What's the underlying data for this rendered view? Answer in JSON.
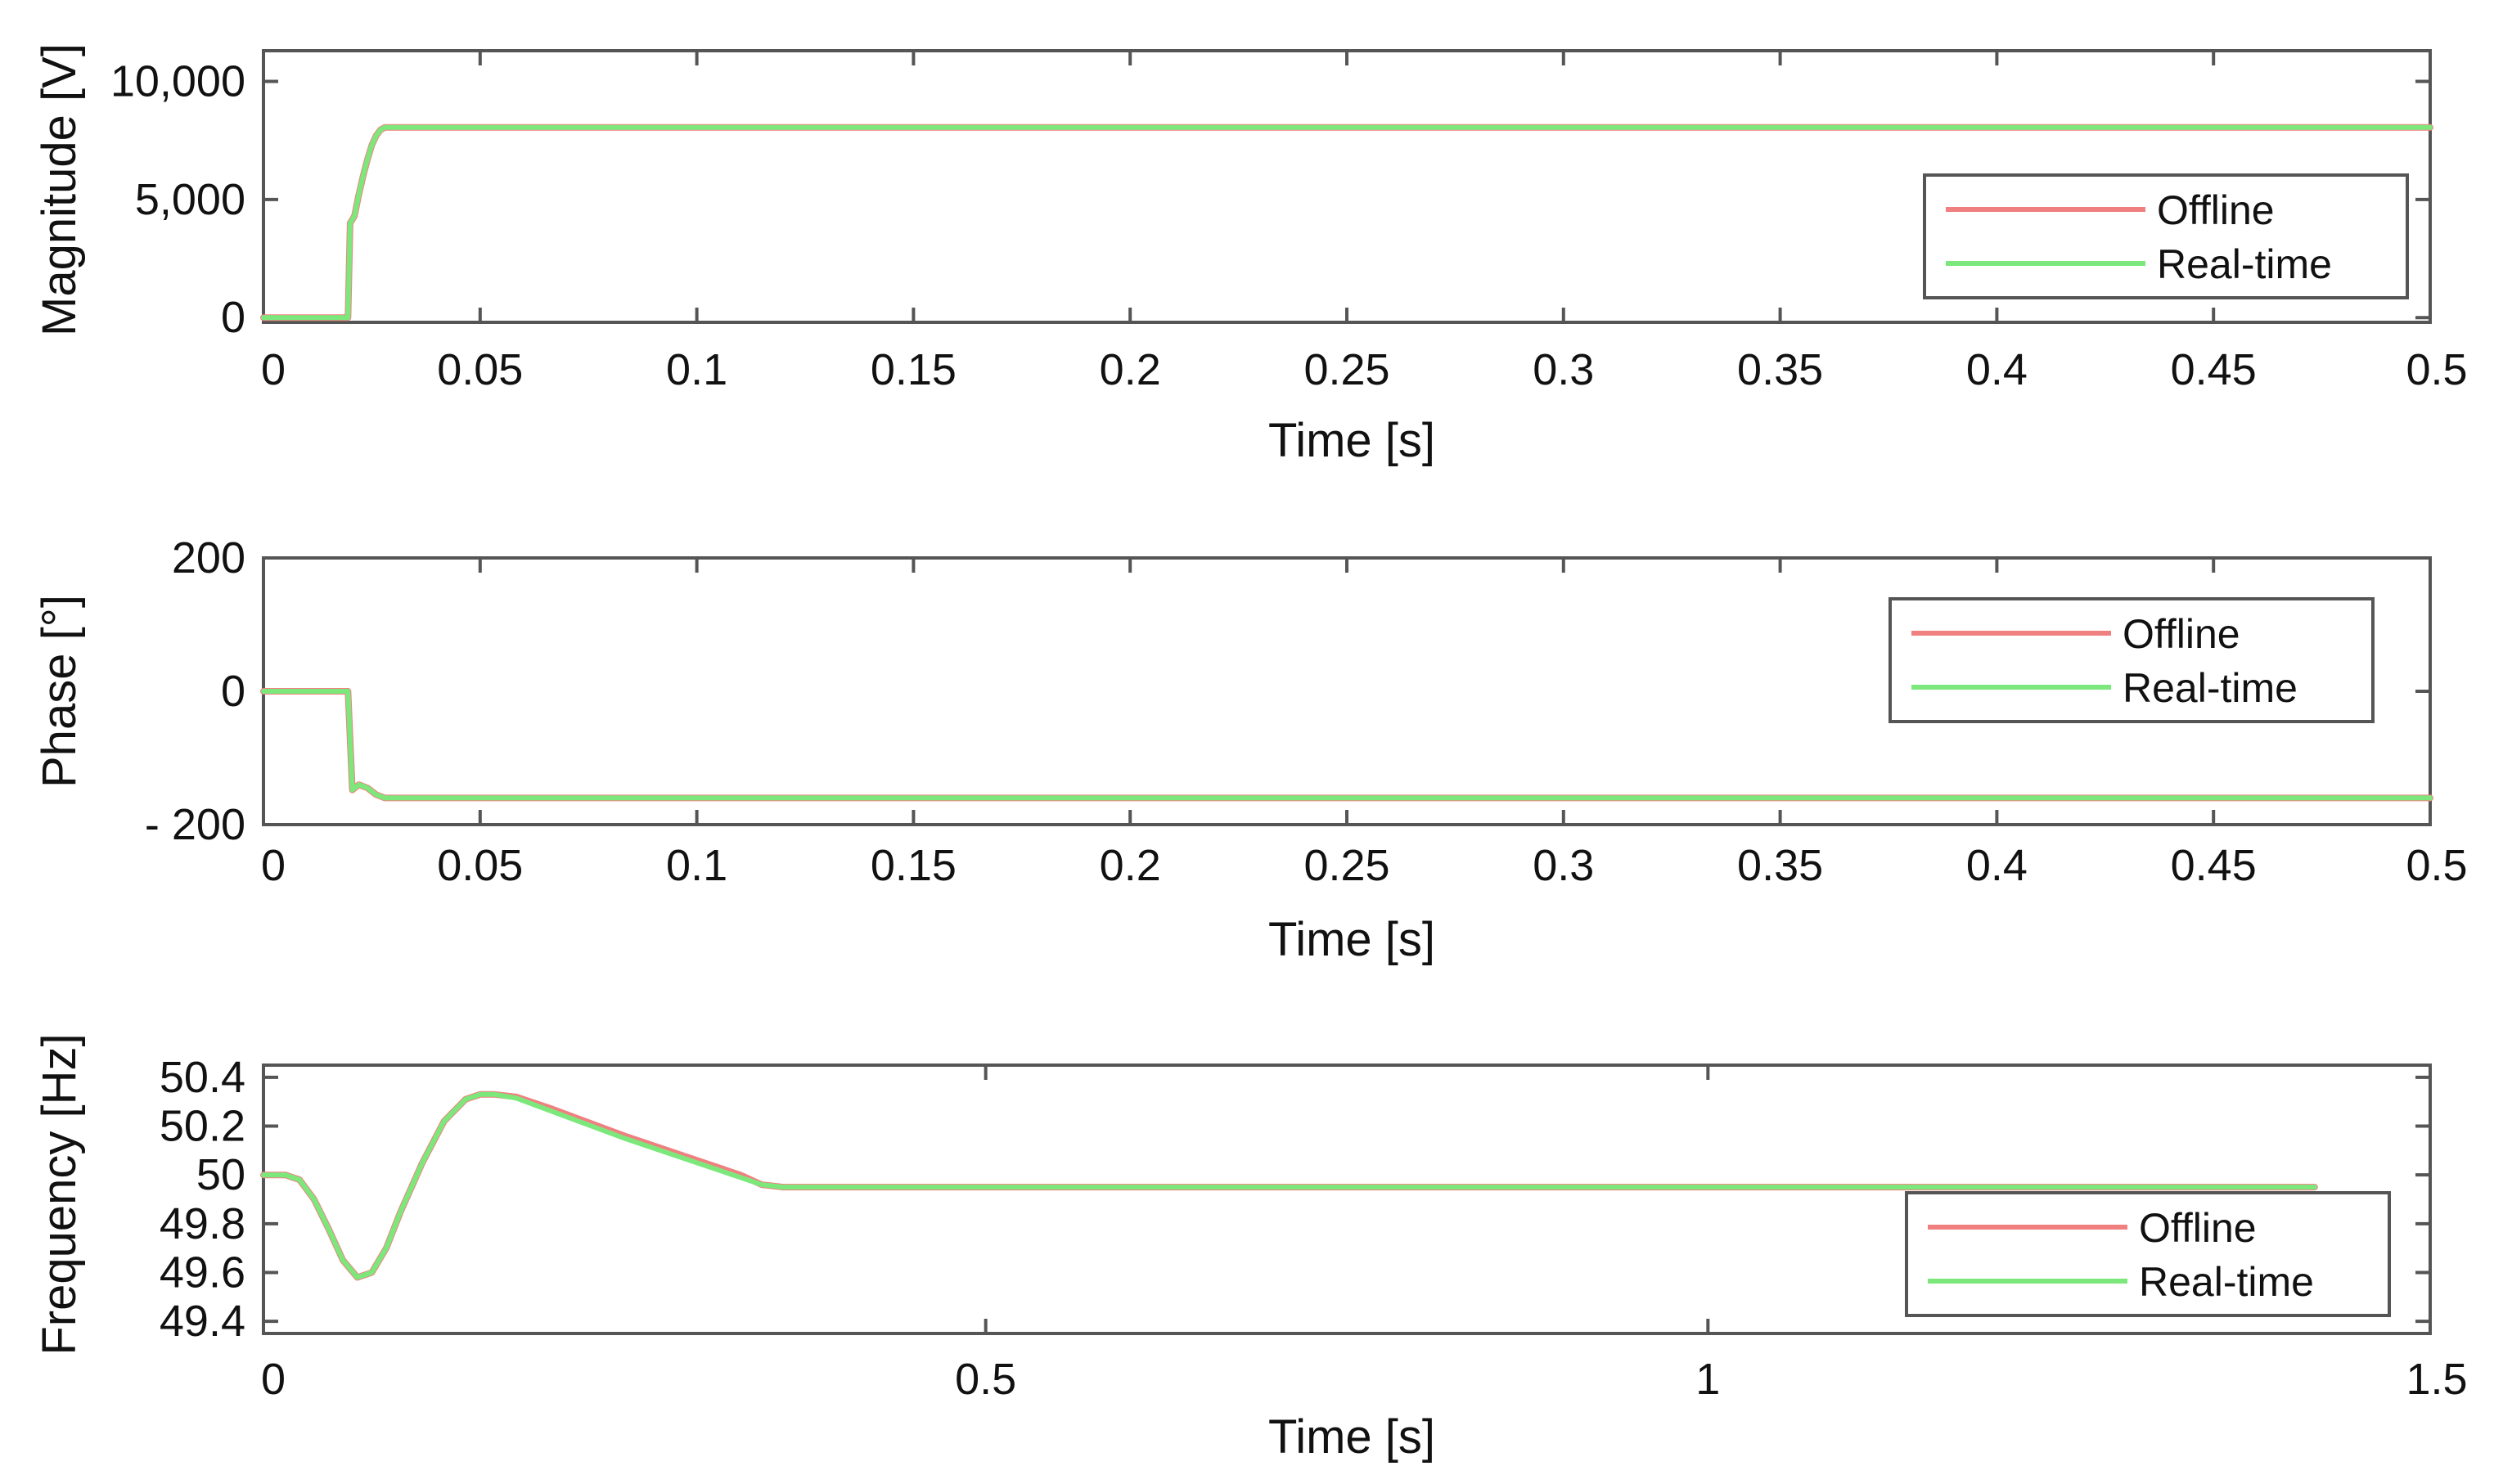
{
  "chart_data": [
    {
      "type": "line",
      "xlabel": "Time [s]",
      "ylabel": "Magnitude [V]",
      "xlim": [
        0,
        0.5
      ],
      "ylim": [
        -200,
        11300
      ],
      "xticks": [
        0,
        0.05,
        0.1,
        0.15,
        0.2,
        0.25,
        0.3,
        0.35,
        0.4,
        0.45,
        0.5
      ],
      "xtick_labels": [
        "0",
        "0.05",
        "0.1",
        "0.15",
        "0.2",
        "0.25",
        "0.3",
        "0.35",
        "0.4",
        "0.45",
        "0.5"
      ],
      "yticks": [
        0,
        5000,
        10000
      ],
      "ytick_labels": [
        "0",
        "5,000",
        "10,000"
      ],
      "grid": false,
      "legend_position": "right",
      "series": [
        {
          "name": "Offline",
          "color": "#f08080",
          "x": [
            0,
            0.0195,
            0.02,
            0.021,
            0.022,
            0.023,
            0.024,
            0.025,
            0.026,
            0.027,
            0.028,
            0.5
          ],
          "y": [
            0,
            0,
            4000,
            4300,
            5200,
            6000,
            6700,
            7300,
            7700,
            7950,
            8050,
            8050
          ]
        },
        {
          "name": "Real-time",
          "color": "#7ce87c",
          "x": [
            0,
            0.0195,
            0.02,
            0.021,
            0.022,
            0.023,
            0.024,
            0.025,
            0.026,
            0.027,
            0.028,
            0.5
          ],
          "y": [
            0,
            0,
            4000,
            4300,
            5200,
            6000,
            6700,
            7300,
            7700,
            7950,
            8050,
            8050
          ]
        }
      ]
    },
    {
      "type": "line",
      "xlabel": "Time [s]",
      "ylabel": "Phase [°]",
      "xlim": [
        0,
        0.5
      ],
      "ylim": [
        -200,
        200
      ],
      "xticks": [
        0,
        0.05,
        0.1,
        0.15,
        0.2,
        0.25,
        0.3,
        0.35,
        0.4,
        0.45,
        0.5
      ],
      "xtick_labels": [
        "0",
        "0.05",
        "0.1",
        "0.15",
        "0.2",
        "0.25",
        "0.3",
        "0.35",
        "0.4",
        "0.45",
        "0.5"
      ],
      "yticks": [
        200,
        0,
        -200
      ],
      "ytick_labels": [
        "200",
        "0",
        "- 200"
      ],
      "grid": false,
      "legend_position": "top-right",
      "series": [
        {
          "name": "Offline",
          "color": "#f08080",
          "x": [
            0,
            0.0195,
            0.0205,
            0.022,
            0.024,
            0.026,
            0.028,
            0.5
          ],
          "y": [
            0,
            0,
            -148,
            -140,
            -145,
            -155,
            -160,
            -160
          ]
        },
        {
          "name": "Real-time",
          "color": "#7ce87c",
          "x": [
            0,
            0.0195,
            0.0205,
            0.022,
            0.024,
            0.026,
            0.028,
            0.5
          ],
          "y": [
            0,
            0,
            -148,
            -140,
            -145,
            -155,
            -160,
            -160
          ]
        }
      ]
    },
    {
      "type": "line",
      "xlabel": "Time [s]",
      "ylabel": "Frequency [Hz]",
      "xlim": [
        0,
        1.5
      ],
      "ylim": [
        49.35,
        50.45
      ],
      "xticks": [
        0,
        0.5,
        1,
        1.5
      ],
      "xtick_labels": [
        "0",
        "0.5",
        "1",
        "1.5"
      ],
      "yticks": [
        50.4,
        50.2,
        50,
        49.8,
        49.6,
        49.4
      ],
      "ytick_labels": [
        "50.4",
        "50.2",
        "50",
        "49.8",
        "49.6",
        "49.4"
      ],
      "grid": false,
      "legend_position": "bottom-right",
      "series": [
        {
          "name": "Offline",
          "color": "#f08080",
          "x": [
            0,
            0.015,
            0.025,
            0.035,
            0.045,
            0.055,
            0.065,
            0.075,
            0.085,
            0.095,
            0.11,
            0.125,
            0.14,
            0.15,
            0.16,
            0.175,
            0.2,
            0.25,
            0.3,
            0.33,
            0.345,
            0.36,
            0.5,
            1.0,
            1.42
          ],
          "y": [
            50.0,
            50.0,
            49.98,
            49.9,
            49.78,
            49.65,
            49.58,
            49.6,
            49.7,
            49.85,
            50.05,
            50.22,
            50.31,
            50.33,
            50.33,
            50.32,
            50.27,
            50.16,
            50.06,
            50.0,
            49.96,
            49.95,
            49.95,
            49.95,
            49.95
          ]
        },
        {
          "name": "Real-time",
          "color": "#7ce87c",
          "x": [
            0,
            0.015,
            0.025,
            0.035,
            0.045,
            0.055,
            0.065,
            0.075,
            0.085,
            0.095,
            0.11,
            0.125,
            0.14,
            0.15,
            0.16,
            0.175,
            0.2,
            0.25,
            0.3,
            0.33,
            0.345,
            0.36,
            0.5,
            1.0,
            1.42
          ],
          "y": [
            50.0,
            50.0,
            49.98,
            49.9,
            49.78,
            49.65,
            49.58,
            49.6,
            49.7,
            49.85,
            50.05,
            50.22,
            50.31,
            50.33,
            50.33,
            50.315,
            50.26,
            50.15,
            50.05,
            49.99,
            49.96,
            49.95,
            49.95,
            49.95,
            49.95
          ]
        }
      ]
    }
  ]
}
